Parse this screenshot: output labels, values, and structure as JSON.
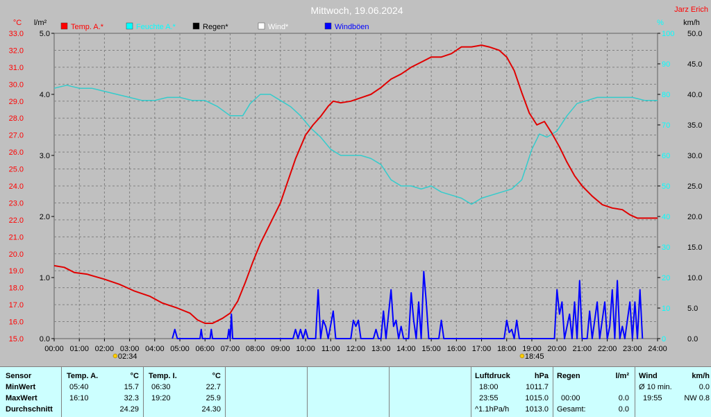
{
  "header": {
    "title": "Mittwoch, 19.06.2024",
    "author": "Jarz Erich"
  },
  "units": {
    "temp": "°C",
    "rain": "l/m²",
    "humidity": "%",
    "wind": "km/h"
  },
  "legend": [
    {
      "label": "Temp. A.*",
      "color": "#ff0000"
    },
    {
      "label": "Feuchte A.*",
      "color": "#00ffff"
    },
    {
      "label": "Regen*",
      "color": "#000000"
    },
    {
      "label": "Wind*",
      "color": "#ffffff"
    },
    {
      "label": "Windböen",
      "color": "#0000ff"
    }
  ],
  "colors": {
    "temp": "#e00000",
    "humidity": "#33cccc",
    "gust": "#0000ff",
    "background": "#c0c0c0"
  },
  "axes": {
    "temp_ticks": [
      "33.0",
      "32.0",
      "31.0",
      "30.0",
      "29.0",
      "28.0",
      "27.0",
      "26.0",
      "25.0",
      "24.0",
      "23.0",
      "22.0",
      "21.0",
      "20.0",
      "19.0",
      "18.0",
      "17.0",
      "16.0",
      "15.0"
    ],
    "rain_ticks": [
      "5.0",
      "4.0",
      "3.0",
      "2.0",
      "1.0",
      "0.0"
    ],
    "humidity_ticks": [
      "100",
      "90",
      "80",
      "70",
      "60",
      "50",
      "40",
      "30",
      "20",
      "10",
      "0"
    ],
    "wind_ticks": [
      "50.0",
      "45.0",
      "40.0",
      "35.0",
      "30.0",
      "25.0",
      "20.0",
      "15.0",
      "10.0",
      "5.0",
      "0.0"
    ],
    "x_ticks": [
      "00:00",
      "01:00",
      "02:00",
      "03:00",
      "04:00",
      "05:00",
      "06:00",
      "07:00",
      "08:00",
      "09:00",
      "10:00",
      "11:00",
      "12:00",
      "13:00",
      "14:00",
      "15:00",
      "16:00",
      "17:00",
      "18:00",
      "19:00",
      "20:00",
      "21:00",
      "22:00",
      "23:00",
      "24:00"
    ],
    "sunrise": "02:34",
    "sunset": "18:45"
  },
  "chart_data": {
    "type": "line",
    "title": "Mittwoch, 19.06.2024",
    "x_range": [
      0,
      24
    ],
    "temp_range": [
      15,
      33
    ],
    "rain_range": [
      0,
      5
    ],
    "humidity_range": [
      0,
      100
    ],
    "wind_range": [
      0,
      50
    ],
    "grid": true,
    "series": [
      {
        "name": "Temp. A.*",
        "axis": "temp",
        "points": [
          [
            0,
            19.3
          ],
          [
            0.4,
            19.2
          ],
          [
            0.8,
            18.9
          ],
          [
            1.3,
            18.8
          ],
          [
            2,
            18.5
          ],
          [
            2.6,
            18.2
          ],
          [
            3.2,
            17.8
          ],
          [
            3.8,
            17.5
          ],
          [
            4.3,
            17.1
          ],
          [
            4.9,
            16.8
          ],
          [
            5.4,
            16.5
          ],
          [
            5.7,
            16.1
          ],
          [
            6,
            15.9
          ],
          [
            6.3,
            15.9
          ],
          [
            6.7,
            16.2
          ],
          [
            7,
            16.5
          ],
          [
            7.3,
            17.2
          ],
          [
            7.6,
            18.3
          ],
          [
            7.9,
            19.5
          ],
          [
            8.2,
            20.6
          ],
          [
            8.6,
            21.8
          ],
          [
            9,
            23.0
          ],
          [
            9.3,
            24.3
          ],
          [
            9.6,
            25.6
          ],
          [
            10,
            27.0
          ],
          [
            10.3,
            27.6
          ],
          [
            10.6,
            28.1
          ],
          [
            10.9,
            28.7
          ],
          [
            11.1,
            29.0
          ],
          [
            11.4,
            28.9
          ],
          [
            11.8,
            29.0
          ],
          [
            12.2,
            29.2
          ],
          [
            12.6,
            29.4
          ],
          [
            13,
            29.8
          ],
          [
            13.4,
            30.3
          ],
          [
            13.8,
            30.6
          ],
          [
            14.2,
            31.0
          ],
          [
            14.6,
            31.3
          ],
          [
            15,
            31.6
          ],
          [
            15.4,
            31.6
          ],
          [
            15.8,
            31.8
          ],
          [
            16.2,
            32.2
          ],
          [
            16.6,
            32.2
          ],
          [
            17,
            32.3
          ],
          [
            17.3,
            32.2
          ],
          [
            17.7,
            32.0
          ],
          [
            18,
            31.6
          ],
          [
            18.3,
            30.8
          ],
          [
            18.6,
            29.5
          ],
          [
            18.9,
            28.3
          ],
          [
            19.2,
            27.6
          ],
          [
            19.5,
            27.8
          ],
          [
            19.8,
            27.1
          ],
          [
            20.1,
            26.3
          ],
          [
            20.4,
            25.4
          ],
          [
            20.7,
            24.6
          ],
          [
            21,
            24.0
          ],
          [
            21.4,
            23.4
          ],
          [
            21.8,
            22.9
          ],
          [
            22.2,
            22.7
          ],
          [
            22.6,
            22.6
          ],
          [
            22.9,
            22.3
          ],
          [
            23.2,
            22.1
          ],
          [
            23.6,
            22.1
          ],
          [
            24,
            22.1
          ]
        ]
      },
      {
        "name": "Feuchte A.*",
        "axis": "humidity",
        "points": [
          [
            0,
            82
          ],
          [
            0.5,
            83
          ],
          [
            1,
            82
          ],
          [
            1.5,
            82
          ],
          [
            2,
            81
          ],
          [
            2.5,
            80
          ],
          [
            3,
            79
          ],
          [
            3.5,
            78
          ],
          [
            4,
            78
          ],
          [
            4.5,
            79
          ],
          [
            5,
            79
          ],
          [
            5.5,
            78
          ],
          [
            6,
            78
          ],
          [
            6.5,
            76
          ],
          [
            7,
            73
          ],
          [
            7.5,
            73
          ],
          [
            7.8,
            77
          ],
          [
            8.2,
            80
          ],
          [
            8.6,
            80
          ],
          [
            9,
            78
          ],
          [
            9.4,
            76
          ],
          [
            9.8,
            73
          ],
          [
            10.2,
            69
          ],
          [
            10.6,
            66
          ],
          [
            11,
            62
          ],
          [
            11.4,
            60
          ],
          [
            11.8,
            60
          ],
          [
            12.2,
            60
          ],
          [
            12.6,
            59
          ],
          [
            13,
            57
          ],
          [
            13.4,
            52
          ],
          [
            13.8,
            50
          ],
          [
            14.2,
            50
          ],
          [
            14.6,
            49
          ],
          [
            15,
            50
          ],
          [
            15.4,
            48
          ],
          [
            15.8,
            47
          ],
          [
            16.2,
            46
          ],
          [
            16.6,
            44
          ],
          [
            17,
            46
          ],
          [
            17.4,
            47
          ],
          [
            17.8,
            48
          ],
          [
            18.2,
            49
          ],
          [
            18.6,
            52
          ],
          [
            19,
            62
          ],
          [
            19.3,
            67
          ],
          [
            19.6,
            66
          ],
          [
            20,
            68
          ],
          [
            20.4,
            73
          ],
          [
            20.8,
            77
          ],
          [
            21.2,
            78
          ],
          [
            21.6,
            79
          ],
          [
            22,
            79
          ],
          [
            22.5,
            79
          ],
          [
            23,
            79
          ],
          [
            23.5,
            78
          ],
          [
            24,
            78
          ]
        ]
      },
      {
        "name": "Windböen",
        "axis": "wind",
        "points": [
          [
            4.7,
            0
          ],
          [
            4.8,
            1.5
          ],
          [
            4.9,
            0
          ],
          [
            5.8,
            0
          ],
          [
            5.85,
            1.5
          ],
          [
            5.9,
            0
          ],
          [
            6.2,
            0
          ],
          [
            6.25,
            1.5
          ],
          [
            6.3,
            0
          ],
          [
            6.9,
            0
          ],
          [
            6.95,
            1.5
          ],
          [
            7,
            0
          ],
          [
            7.05,
            4
          ],
          [
            7.1,
            0
          ],
          [
            9.5,
            0
          ],
          [
            9.6,
            1.5
          ],
          [
            9.7,
            0
          ],
          [
            9.8,
            1.5
          ],
          [
            9.9,
            0
          ],
          [
            10,
            1.5
          ],
          [
            10.1,
            0
          ],
          [
            10.4,
            0
          ],
          [
            10.5,
            8
          ],
          [
            10.6,
            0
          ],
          [
            10.7,
            3
          ],
          [
            10.8,
            2
          ],
          [
            10.9,
            0
          ],
          [
            11.1,
            4.5
          ],
          [
            11.2,
            0
          ],
          [
            11.8,
            0
          ],
          [
            11.9,
            3
          ],
          [
            12,
            2
          ],
          [
            12.1,
            3
          ],
          [
            12.2,
            0
          ],
          [
            12.7,
            0
          ],
          [
            12.8,
            1.5
          ],
          [
            12.9,
            0
          ],
          [
            13,
            0
          ],
          [
            13.1,
            4.5
          ],
          [
            13.2,
            0
          ],
          [
            13.3,
            4
          ],
          [
            13.4,
            8
          ],
          [
            13.5,
            2
          ],
          [
            13.6,
            3
          ],
          [
            13.7,
            0
          ],
          [
            13.8,
            2
          ],
          [
            13.9,
            0
          ],
          [
            14.1,
            0
          ],
          [
            14.2,
            7.5
          ],
          [
            14.3,
            3
          ],
          [
            14.4,
            0
          ],
          [
            14.5,
            6
          ],
          [
            14.6,
            0
          ],
          [
            14.7,
            11
          ],
          [
            14.8,
            6
          ],
          [
            14.9,
            0
          ],
          [
            15.3,
            0
          ],
          [
            15.4,
            3
          ],
          [
            15.5,
            0
          ],
          [
            17.9,
            0
          ],
          [
            18,
            3
          ],
          [
            18.1,
            1
          ],
          [
            18.2,
            1.5
          ],
          [
            18.3,
            0
          ],
          [
            18.4,
            3
          ],
          [
            18.5,
            0
          ],
          [
            19.9,
            0
          ],
          [
            20,
            8
          ],
          [
            20.1,
            4
          ],
          [
            20.2,
            6
          ],
          [
            20.3,
            0
          ],
          [
            20.5,
            4
          ],
          [
            20.6,
            0
          ],
          [
            20.7,
            6
          ],
          [
            20.8,
            0
          ],
          [
            20.9,
            9.5
          ],
          [
            21,
            0
          ],
          [
            21.2,
            0
          ],
          [
            21.3,
            4.5
          ],
          [
            21.4,
            0
          ],
          [
            21.6,
            6
          ],
          [
            21.7,
            0
          ],
          [
            21.9,
            6
          ],
          [
            22,
            0
          ],
          [
            22.1,
            2
          ],
          [
            22.2,
            8
          ],
          [
            22.3,
            0
          ],
          [
            22.4,
            9.5
          ],
          [
            22.5,
            0
          ],
          [
            22.6,
            2
          ],
          [
            22.7,
            0
          ],
          [
            22.9,
            6
          ],
          [
            23,
            0
          ],
          [
            23.1,
            6
          ],
          [
            23.2,
            0
          ],
          [
            23.3,
            8
          ],
          [
            23.4,
            0
          ]
        ]
      }
    ]
  },
  "table": {
    "col_sensor": {
      "header": "Sensor",
      "rows": [
        "MinWert",
        "MaxWert",
        "Durchschnitt"
      ]
    },
    "temp_a": {
      "header": "Temp. A.",
      "unit": "°C",
      "times": [
        "05:40",
        "16:10",
        ""
      ],
      "values": [
        "15.7",
        "32.3",
        "24.29"
      ]
    },
    "temp_i": {
      "header": "Temp. I.",
      "unit": "°C",
      "times": [
        "06:30",
        "19:20",
        ""
      ],
      "values": [
        "22.7",
        "25.9",
        "24.30"
      ]
    },
    "pressure": {
      "header": "Luftdruck",
      "unit": "hPa",
      "times": [
        "18:00",
        "23:55",
        "^1.1hPa/h"
      ],
      "values": [
        "1011.7",
        "1015.0",
        "1013.0"
      ]
    },
    "rain": {
      "header": "Regen",
      "unit": "l/m²",
      "times": [
        "",
        "00:00",
        "Gesamt:"
      ],
      "values": [
        "",
        "0.0",
        "0.0"
      ]
    },
    "wind": {
      "header": "Wind",
      "unit": "km/h",
      "times": [
        "Ø 10 min.",
        "19:55",
        ""
      ],
      "values": [
        "0.0",
        "NW 0.8",
        ""
      ]
    }
  }
}
